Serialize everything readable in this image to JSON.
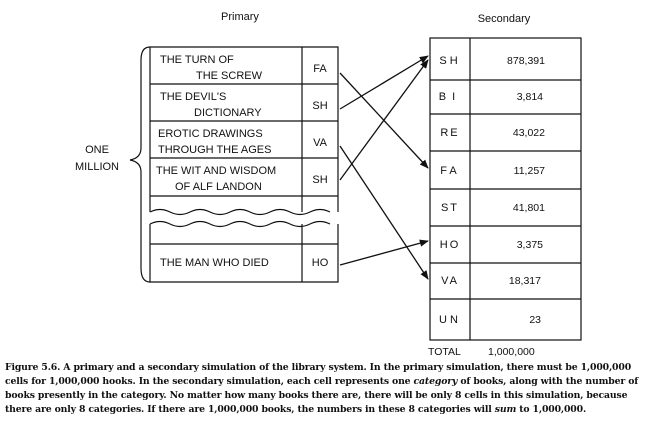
{
  "diagram": {
    "primary_title": "Primary",
    "secondary_title": "Secondary",
    "one_million_line1": "ONE",
    "one_million_line2": "MILLION",
    "primary_rows": [
      {
        "title_line1": "THE TURN OF",
        "title_line2": "THE SCREW",
        "code": "FA"
      },
      {
        "title_line1": "THE DEVIL'S",
        "title_line2": "DICTIONARY",
        "code": "SH"
      },
      {
        "title_line1": "EROTIC DRAWINGS",
        "title_line2": "THROUGH THE AGES",
        "code": "VA"
      },
      {
        "title_line1": "THE WIT AND WISDOM",
        "title_line2": "OF ALF LANDON",
        "code": "SH"
      },
      {
        "title_line1": "THE MAN WHO DIED",
        "title_line2": "",
        "code": "HO"
      }
    ],
    "secondary_rows": [
      {
        "code": "SH",
        "count": "878,391"
      },
      {
        "code": "BI",
        "count": "3,814"
      },
      {
        "code": "RE",
        "count": "43,022"
      },
      {
        "code": "FA",
        "count": "11,257"
      },
      {
        "code": "ST",
        "count": "41,801"
      },
      {
        "code": "HO",
        "count": "3,375"
      },
      {
        "code": "VA",
        "count": "18,317"
      },
      {
        "code": "UN",
        "count": "23"
      }
    ],
    "total_label": "TOTAL",
    "total_value": "1,000,000"
  },
  "caption": {
    "part1": "Figure 5.6. A primary and a secondary simulation of the library system. In the primary simulation, there must be 1,000,000 cells for 1,000,000 hooks. In the secondary simulation, each cell represents one ",
    "italic1": "category",
    "part2": " of books, along with the number of books presently in the category. No matter how many books there are, there will be only 8 cells in this simulation, because there are only 8 categories. If there are 1,000,000 books, the numbers in these 8 categories will ",
    "italic2": "sum",
    "part3": " to 1,000,000."
  }
}
